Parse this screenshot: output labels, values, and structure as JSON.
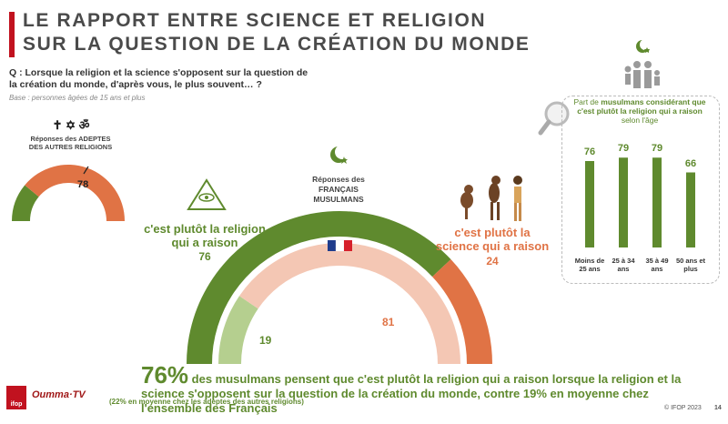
{
  "header": {
    "title": "LE RAPPORT ENTRE SCIENCE ET RELIGION SUR LA QUESTION DE LA CRÉATION DU MONDE",
    "question": "Q : Lorsque la religion et la science s'opposent sur la question de la création du monde, d'après vous, le plus souvent… ?",
    "base": "Base : personnes âgées de 15 ans et plus"
  },
  "other_religions": {
    "label": "Réponses des ADEPTES DES AUTRES RELIGIONS",
    "symbols": "✝ ✡ ॐ",
    "religion_pct": 22,
    "science_pct": 78
  },
  "muslims": {
    "label": "Réponses des FRANÇAIS MUSULMANS",
    "religion_label": "c'est plutôt la religion qui a raison",
    "religion_pct": 76,
    "science_label": "c'est plutôt la science qui a raison",
    "science_pct": 24,
    "inner_religion_pct": 19,
    "inner_science_pct": 81
  },
  "age_panel": {
    "title_a": "Part de ",
    "title_b": "musulmans considérant que c'est plutôt la religion qui a raison",
    "title_c": " selon l'âge"
  },
  "chart_data": [
    {
      "type": "bar",
      "categories": [
        "Moins de 25 ans",
        "25 à 34 ans",
        "35 à 49 ans",
        "50 ans et plus"
      ],
      "values": [
        76,
        79,
        79,
        66
      ]
    },
    {
      "type": "pie",
      "categories": [
        "c'est plutôt la religion qui a raison",
        "c'est plutôt la science qui a raison"
      ],
      "values": [
        76,
        24
      ]
    },
    {
      "type": "pie",
      "categories": [
        "religion",
        "science"
      ],
      "values": [
        22,
        78
      ]
    }
  ],
  "bottom": {
    "pct": "76%",
    "text": " des musulmans pensent que c'est plutôt la religion qui a raison lorsque la religion et la science s'opposent sur la question de la création du monde, contre 19% en moyenne chez l'ensemble des Français",
    "note": "(22% en moyenne chez les adeptes des autres religions)"
  },
  "footer": {
    "logo_ifop": "ifop",
    "logo_brand": "Oumma·TV",
    "copyright": "© IFOP 2023",
    "page": "14"
  },
  "colors": {
    "green": "#5f8a2e",
    "orange": "#e07345",
    "red": "#c1121f"
  }
}
